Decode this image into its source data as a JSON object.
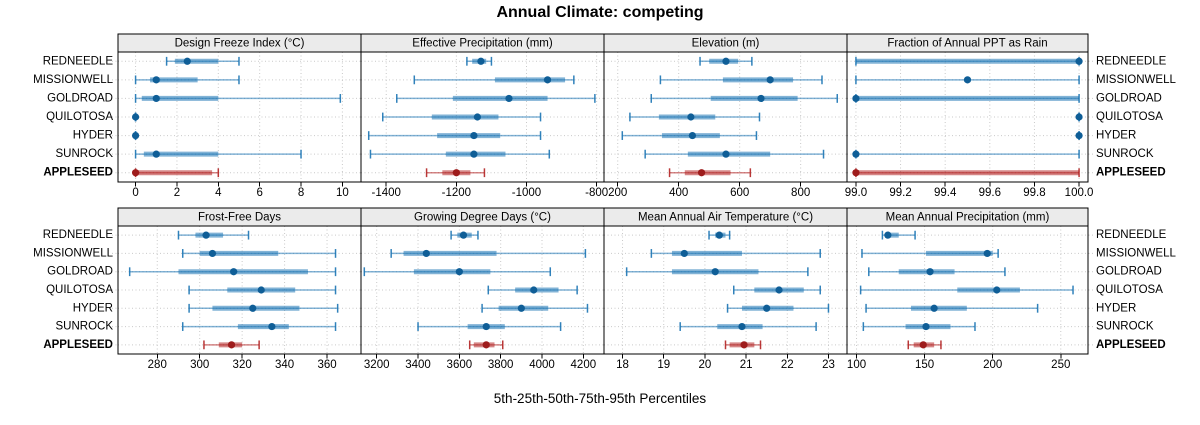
{
  "title": "Annual Climate: competing",
  "caption": "5th-25th-50th-75th-95th Percentiles",
  "sites": [
    "REDNEEDLE",
    "MISSIONWELL",
    "GOLDROAD",
    "QUILOTOSA",
    "HYDER",
    "SUNROCK",
    "APPLESEED"
  ],
  "highlight_site": "APPLESEED",
  "colors": {
    "series": "#1b74b4",
    "series_dot": "#0f5e97",
    "highlight": "#b22222",
    "highlight_dot": "#9e1c1c",
    "strip_bg": "#ebebeb",
    "grid": "#c9c9c9",
    "border": "#000000"
  },
  "percentiles": [
    5,
    25,
    50,
    75,
    95
  ],
  "chart_data": [
    {
      "type": "dot-whisker",
      "row": 0,
      "col": 0,
      "title": "Design Freeze Index (°C)",
      "xlim": [
        -0.85,
        10.9
      ],
      "xticks": [
        0,
        2,
        4,
        6,
        8,
        10
      ],
      "xtick_labels": [
        "0",
        "2",
        "4",
        "6",
        "8",
        "10"
      ],
      "series": {
        "REDNEEDLE": [
          1.5,
          1.9,
          2.5,
          4,
          5
        ],
        "MISSIONWELL": [
          0,
          0.7,
          1,
          3,
          5
        ],
        "GOLDROAD": [
          0,
          0.3,
          1,
          4,
          9.9
        ],
        "QUILOTOSA": [
          0,
          0,
          0,
          0,
          0
        ],
        "HYDER": [
          0,
          0,
          0,
          0,
          0
        ],
        "SUNROCK": [
          0,
          0.4,
          1,
          4,
          8
        ],
        "APPLESEED": [
          0,
          0,
          0,
          3.7,
          4
        ]
      }
    },
    {
      "type": "dot-whisker",
      "row": 0,
      "col": 1,
      "title": "Effective Precipitation (mm)",
      "xlim": [
        -1472,
        -779
      ],
      "xticks": [
        -1400,
        -1200,
        -1000,
        -800
      ],
      "xtick_labels": [
        "-1400",
        "-1200",
        "-1000",
        "-800"
      ],
      "series": {
        "REDNEEDLE": [
          -1170,
          -1155,
          -1130,
          -1115,
          -1100
        ],
        "MISSIONWELL": [
          -1320,
          -1090,
          -940,
          -890,
          -865
        ],
        "GOLDROAD": [
          -1370,
          -1210,
          -1050,
          -940,
          -805
        ],
        "QUILOTOSA": [
          -1410,
          -1270,
          -1140,
          -1080,
          -960
        ],
        "HYDER": [
          -1450,
          -1255,
          -1150,
          -1075,
          -960
        ],
        "SUNROCK": [
          -1445,
          -1230,
          -1150,
          -1060,
          -935
        ],
        "APPLESEED": [
          -1285,
          -1240,
          -1200,
          -1160,
          -1120
        ]
      }
    },
    {
      "type": "dot-whisker",
      "row": 0,
      "col": 2,
      "title": "Elevation (m)",
      "xlim": [
        155,
        952
      ],
      "xticks": [
        200,
        400,
        600,
        800
      ],
      "xtick_labels": [
        "200",
        "400",
        "600",
        "800"
      ],
      "series": {
        "REDNEEDLE": [
          470,
          500,
          555,
          595,
          640
        ],
        "MISSIONWELL": [
          340,
          545,
          700,
          775,
          870
        ],
        "GOLDROAD": [
          310,
          505,
          670,
          790,
          920
        ],
        "QUILOTOSA": [
          240,
          335,
          440,
          520,
          665
        ],
        "HYDER": [
          215,
          345,
          445,
          535,
          655
        ],
        "SUNROCK": [
          290,
          430,
          555,
          700,
          875
        ],
        "APPLESEED": [
          370,
          420,
          475,
          570,
          635
        ]
      }
    },
    {
      "type": "dot-whisker",
      "row": 0,
      "col": 3,
      "title": "Fraction of Annual PPT as Rain",
      "xlim": [
        98.96,
        100.04
      ],
      "xticks": [
        99.0,
        99.2,
        99.4,
        99.6,
        99.8,
        100.0
      ],
      "xtick_labels": [
        "99.0",
        "99.2",
        "99.4",
        "99.6",
        "99.8",
        "100.0"
      ],
      "series": {
        "REDNEEDLE": [
          99,
          99,
          100,
          100,
          100
        ],
        "MISSIONWELL": [
          99,
          99.5,
          99.5,
          99.5,
          100
        ],
        "GOLDROAD": [
          99,
          99,
          99,
          100,
          100
        ],
        "QUILOTOSA": [
          100,
          100,
          100,
          100,
          100
        ],
        "HYDER": [
          100,
          100,
          100,
          100,
          100
        ],
        "SUNROCK": [
          99,
          99,
          99,
          99,
          100
        ],
        "APPLESEED": [
          99,
          99,
          99,
          100,
          100
        ]
      }
    },
    {
      "type": "dot-whisker",
      "row": 1,
      "col": 0,
      "title": "Frost-Free Days",
      "xlim": [
        261.5,
        376
      ],
      "xticks": [
        280,
        300,
        320,
        340,
        360
      ],
      "xtick_labels": [
        "280",
        "300",
        "320",
        "340",
        "360"
      ],
      "series": {
        "REDNEEDLE": [
          290,
          298,
          303,
          311,
          323
        ],
        "MISSIONWELL": [
          292,
          300,
          306,
          337,
          364
        ],
        "GOLDROAD": [
          267,
          290,
          316,
          351,
          364
        ],
        "QUILOTOSA": [
          295,
          313,
          329,
          345,
          364
        ],
        "HYDER": [
          295,
          306,
          325,
          347,
          365
        ],
        "SUNROCK": [
          292,
          318,
          334,
          342,
          364
        ],
        "APPLESEED": [
          302,
          309,
          315,
          320,
          328
        ]
      }
    },
    {
      "type": "dot-whisker",
      "row": 1,
      "col": 1,
      "title": "Growing Degree Days (°C)",
      "xlim": [
        3124,
        4300
      ],
      "xticks": [
        3200,
        3400,
        3600,
        3800,
        4000,
        4200
      ],
      "xtick_labels": [
        "3200",
        "3400",
        "3600",
        "3800",
        "4000",
        "4200"
      ],
      "series": {
        "REDNEEDLE": [
          3560,
          3590,
          3620,
          3660,
          3690
        ],
        "MISSIONWELL": [
          3270,
          3330,
          3440,
          3780,
          4210
        ],
        "GOLDROAD": [
          3140,
          3380,
          3600,
          3750,
          4040
        ],
        "QUILOTOSA": [
          3740,
          3870,
          3960,
          4080,
          4170
        ],
        "HYDER": [
          3710,
          3790,
          3900,
          4030,
          4220
        ],
        "SUNROCK": [
          3400,
          3640,
          3730,
          3820,
          4090
        ],
        "APPLESEED": [
          3650,
          3670,
          3730,
          3770,
          3810
        ]
      }
    },
    {
      "type": "dot-whisker",
      "row": 1,
      "col": 2,
      "title": "Mean Annual Air Temperature (°C)",
      "xlim": [
        17.55,
        23.45
      ],
      "xticks": [
        18,
        19,
        20,
        21,
        22,
        23
      ],
      "xtick_labels": [
        "18",
        "19",
        "20",
        "21",
        "22",
        "23"
      ],
      "series": {
        "REDNEEDLE": [
          20.1,
          20.25,
          20.35,
          20.5,
          20.6
        ],
        "MISSIONWELL": [
          18.7,
          19.2,
          19.5,
          20.9,
          22.8
        ],
        "GOLDROAD": [
          18.1,
          19.2,
          20.25,
          21.3,
          22.5
        ],
        "QUILOTOSA": [
          20.7,
          21.2,
          21.8,
          22.4,
          22.8
        ],
        "HYDER": [
          20.55,
          20.9,
          21.5,
          22.15,
          23.0
        ],
        "SUNROCK": [
          19.4,
          20.3,
          20.9,
          21.4,
          22.7
        ],
        "APPLESEED": [
          20.5,
          20.6,
          20.95,
          21.2,
          21.35
        ]
      }
    },
    {
      "type": "dot-whisker",
      "row": 1,
      "col": 3,
      "title": "Mean Annual Precipitation (mm)",
      "xlim": [
        93,
        270
      ],
      "xticks": [
        100,
        150,
        200,
        250
      ],
      "xtick_labels": [
        "100",
        "150",
        "200",
        "250"
      ],
      "series": {
        "REDNEEDLE": [
          119,
          121,
          123,
          131,
          143
        ],
        "MISSIONWELL": [
          104,
          151,
          196,
          200,
          204
        ],
        "GOLDROAD": [
          109,
          131,
          154,
          172,
          209
        ],
        "QUILOTOSA": [
          103,
          174,
          203,
          220,
          259
        ],
        "HYDER": [
          107,
          140,
          157,
          181,
          233
        ],
        "SUNROCK": [
          105,
          136,
          151,
          169,
          187
        ],
        "APPLESEED": [
          138,
          142,
          149,
          157,
          162
        ]
      }
    }
  ]
}
